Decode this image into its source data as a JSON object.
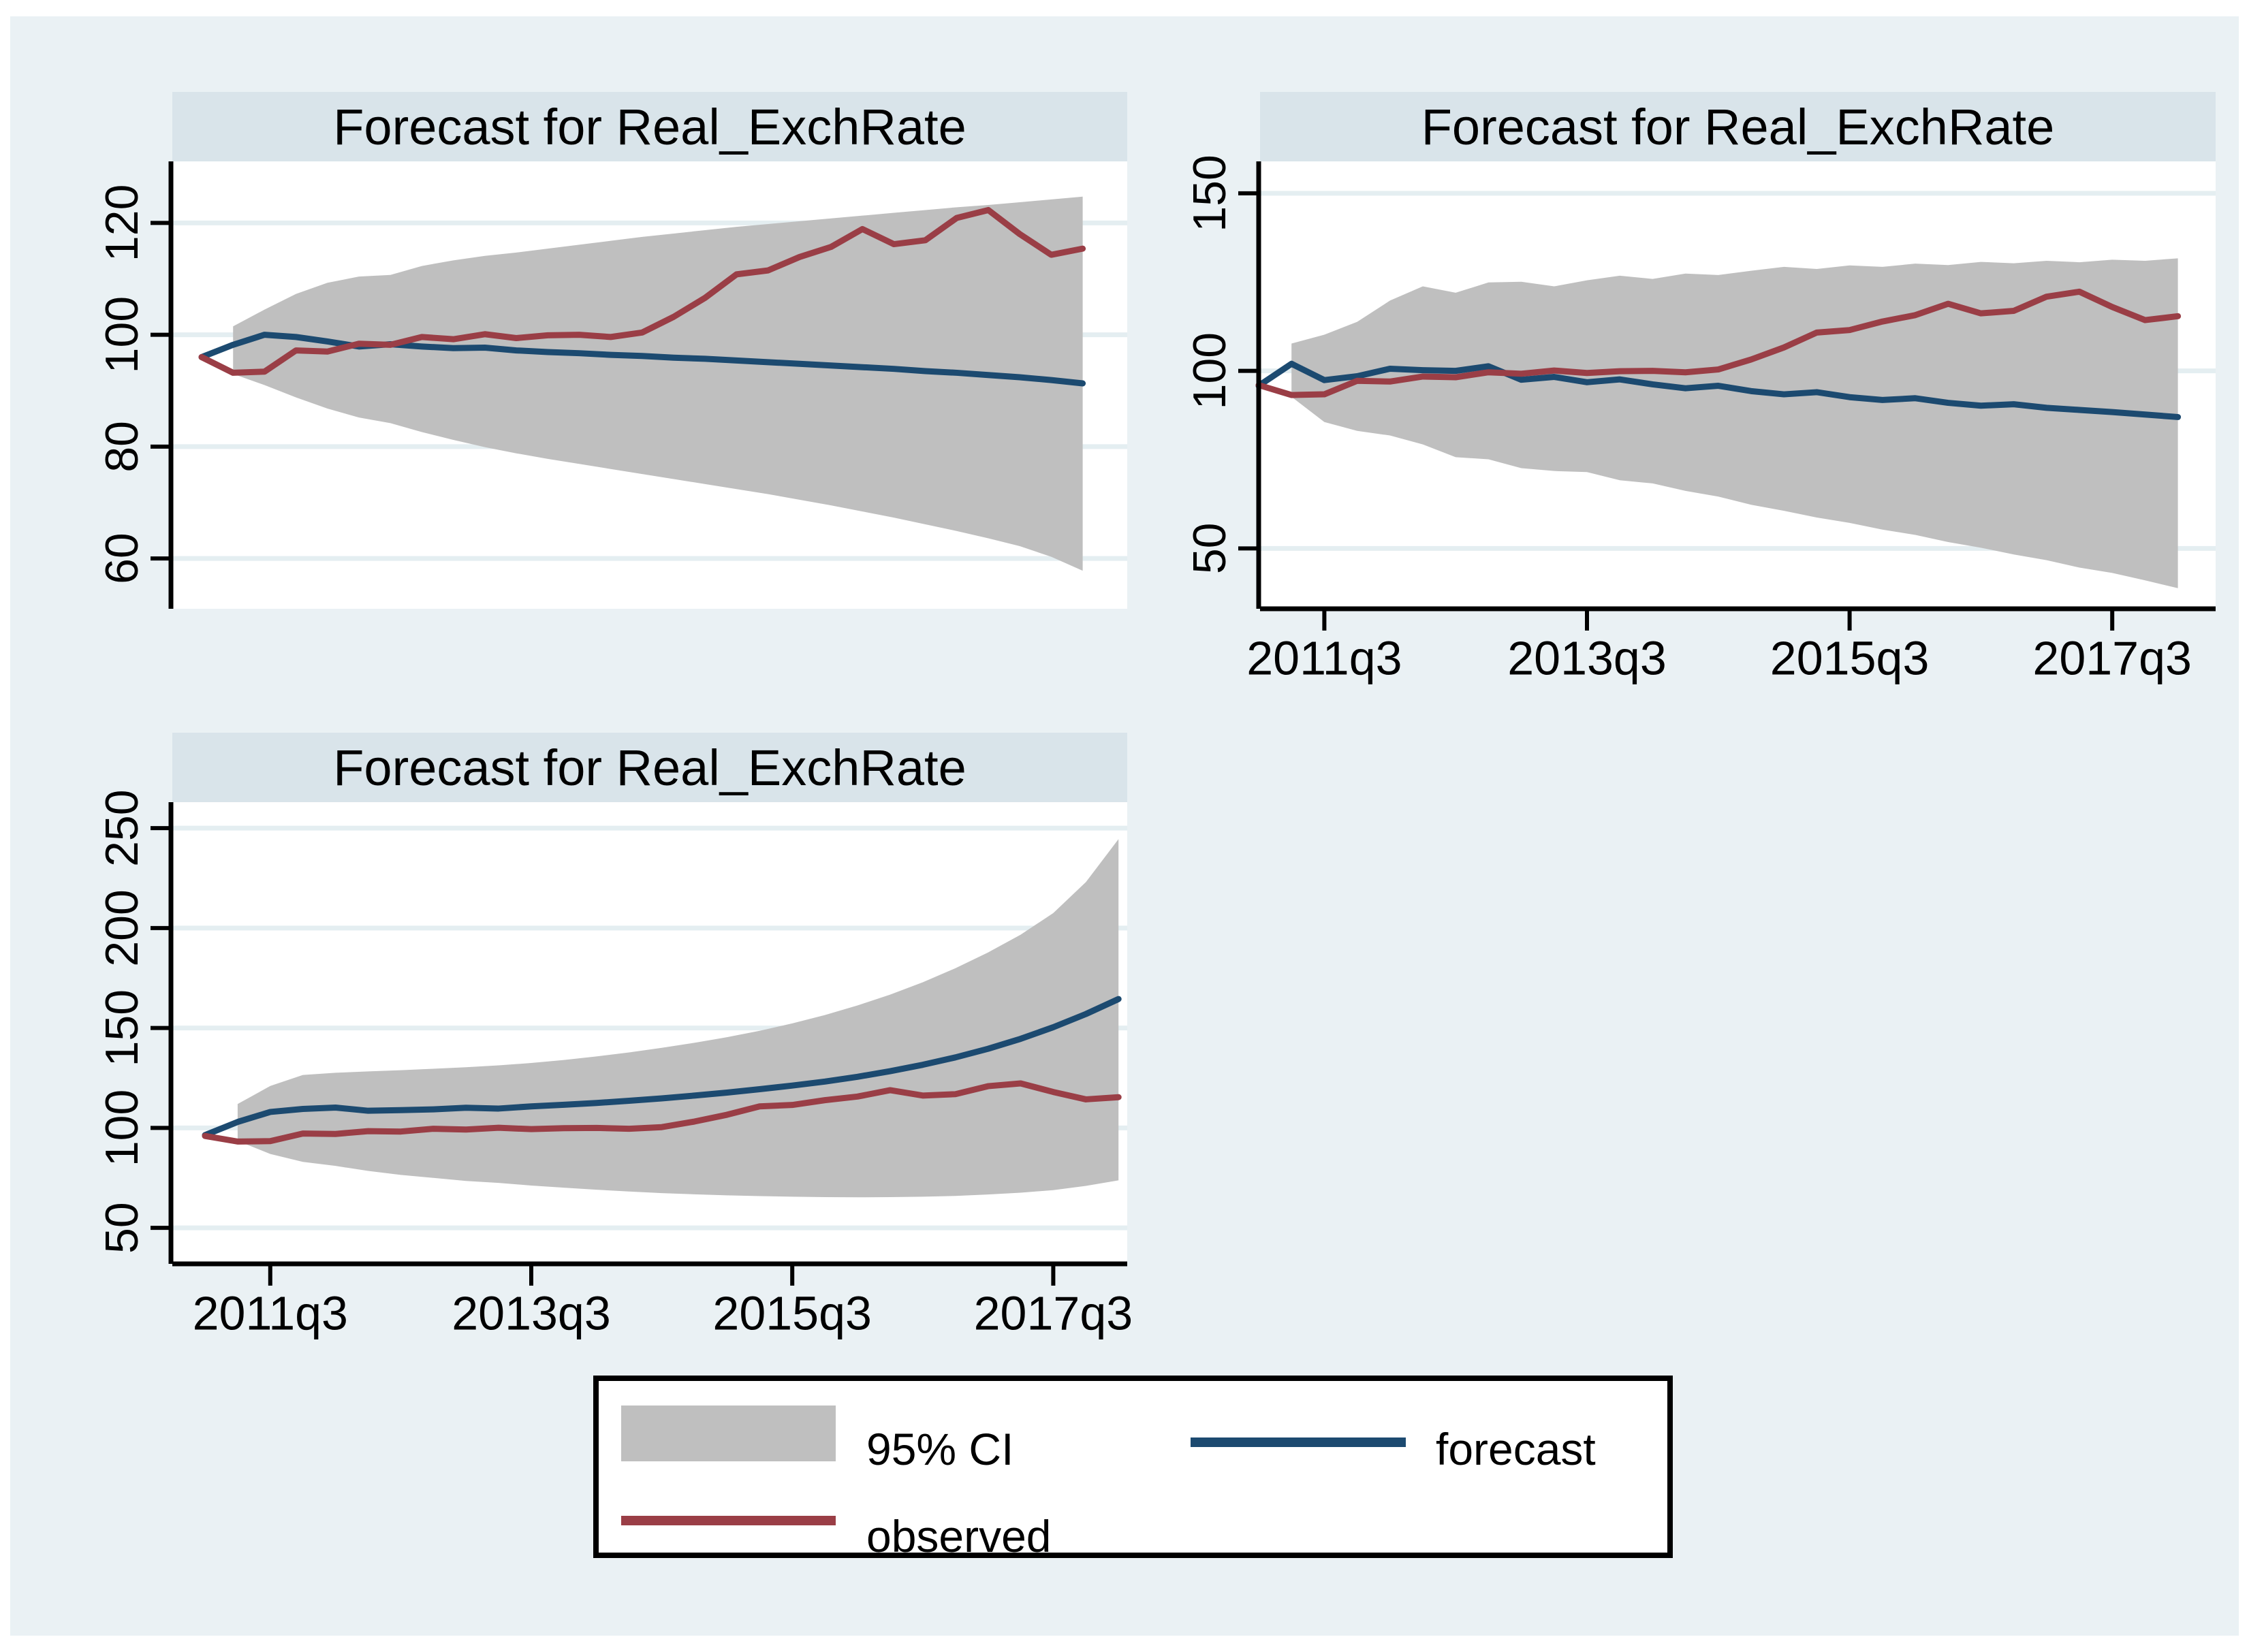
{
  "figure": {
    "background_color": "#ffffff",
    "canvas_color": "#eaf1f4",
    "title_band_color": "#d9e4ea",
    "plot_color": "#ffffff",
    "grid_color": "#e4eef1",
    "axis_color": "#000000",
    "ci_color": "#bfbfbf",
    "forecast_color": "#1c4a70",
    "observed_color": "#9a3e46"
  },
  "legend": {
    "items": [
      {
        "label": "95% CI",
        "swatch": "area",
        "color": "#bfbfbf"
      },
      {
        "label": "forecast",
        "swatch": "line",
        "color": "#1c4a70"
      },
      {
        "label": "observed",
        "swatch": "line",
        "color": "#9a3e46"
      }
    ]
  },
  "chart_data": [
    {
      "type": "area",
      "title": "Forecast for Real_ExchRate",
      "panel": "top-left",
      "x": "quarterly from 2011q1",
      "x_tick_indices": [
        2,
        10,
        18,
        26
      ],
      "x_tick_labels": [],
      "y_ticks": [
        60,
        80,
        100,
        120
      ],
      "y_range": [
        51,
        131
      ],
      "grid": true,
      "legend_position": "none",
      "series": [
        {
          "name": "95% CI upper",
          "values": [
            null,
            101.5,
            104.5,
            107.3,
            109.3,
            110.4,
            110.7,
            112.3,
            113.3,
            114.1,
            114.7,
            115.4,
            116.1,
            116.8,
            117.5,
            118.1,
            118.7,
            119.3,
            119.8,
            120.3,
            120.8,
            121.3,
            121.8,
            122.3,
            122.8,
            123.2,
            123.7,
            124.2,
            124.7
          ]
        },
        {
          "name": "95% CI lower",
          "values": [
            null,
            93,
            91,
            88.8,
            86.8,
            85.2,
            84.2,
            82.6,
            81.2,
            79.9,
            78.8,
            77.8,
            76.9,
            76,
            75.1,
            74.2,
            73.3,
            72.4,
            71.5,
            70.5,
            69.5,
            68.4,
            67.3,
            66.1,
            64.9,
            63.6,
            62.2,
            60.3,
            57.8
          ]
        },
        {
          "name": "forecast",
          "values": [
            96,
            98.2,
            100,
            99.6,
            98.8,
            97.9,
            98.3,
            97.9,
            97.6,
            97.7,
            97.2,
            96.9,
            96.7,
            96.4,
            96.2,
            95.9,
            95.7,
            95.4,
            95.1,
            94.8,
            94.5,
            94.2,
            93.9,
            93.5,
            93.2,
            92.8,
            92.4,
            91.9,
            91.3
          ]
        },
        {
          "name": "observed",
          "values": [
            96,
            93.2,
            93.4,
            97.2,
            97,
            98.4,
            98.2,
            99.6,
            99.2,
            100.1,
            99.4,
            99.9,
            100,
            99.6,
            100.4,
            103.2,
            106.6,
            110.8,
            111.5,
            113.9,
            115.7,
            118.9,
            116.2,
            116.9,
            120.9,
            122.3,
            118,
            114.3,
            115.4
          ]
        }
      ]
    },
    {
      "type": "area",
      "title": "Forecast for Real_ExchRate",
      "panel": "top-right",
      "x": "quarterly from 2011q1",
      "x_tick_indices": [
        2,
        10,
        18,
        26
      ],
      "x_tick_labels": [
        "2011q3",
        "2013q3",
        "2015q3",
        "2017q3"
      ],
      "y_ticks": [
        50,
        100,
        150
      ],
      "y_range": [
        33,
        159
      ],
      "grid": true,
      "legend_position": "none",
      "series": [
        {
          "name": "95% CI upper",
          "values": [
            null,
            107.7,
            110.2,
            113.8,
            119.8,
            123.8,
            122,
            124.9,
            125.1,
            123.8,
            125.5,
            126.8,
            125.9,
            127.4,
            127,
            128.2,
            129.3,
            128.7,
            129.7,
            129.3,
            130.2,
            129.8,
            130.7,
            130.3,
            131,
            130.6,
            131.3,
            131,
            131.7
          ]
        },
        {
          "name": "95% CI lower",
          "values": [
            null,
            92.7,
            85.6,
            83.1,
            81.8,
            79.3,
            75.7,
            75.1,
            72.6,
            71.8,
            71.5,
            69.2,
            68.3,
            66.2,
            64.6,
            62.3,
            60.6,
            58.7,
            57.2,
            55.3,
            53.8,
            51.8,
            50.2,
            48.3,
            46.7,
            44.6,
            43.1,
            41,
            38.8
          ]
        },
        {
          "name": "forecast",
          "values": [
            95.8,
            102,
            97.4,
            98.5,
            100.6,
            100.2,
            100,
            101.3,
            97.5,
            98.3,
            96.8,
            97.6,
            96.2,
            95.1,
            95.8,
            94.3,
            93.4,
            94,
            92.6,
            91.8,
            92.3,
            91,
            90.2,
            90.6,
            89.6,
            89,
            88.4,
            87.7,
            87
          ]
        },
        {
          "name": "observed",
          "values": [
            96,
            93.2,
            93.4,
            97.2,
            97,
            98.4,
            98.2,
            99.6,
            99.2,
            100.1,
            99.4,
            99.9,
            100,
            99.6,
            100.4,
            103.2,
            106.6,
            110.8,
            111.5,
            113.9,
            115.7,
            118.9,
            116.2,
            116.9,
            120.9,
            122.3,
            118,
            114.3,
            115.4
          ]
        }
      ]
    },
    {
      "type": "area",
      "title": "Forecast for Real_ExchRate",
      "panel": "bottom-left",
      "x": "quarterly from 2011q1",
      "x_tick_indices": [
        2,
        10,
        18,
        26
      ],
      "x_tick_labels": [
        "2011q3",
        "2013q3",
        "2015q3",
        "2017q3"
      ],
      "y_ticks": [
        50,
        100,
        150,
        200,
        250
      ],
      "y_range": [
        32,
        263
      ],
      "grid": true,
      "legend_position": "none",
      "series": [
        {
          "name": "95% CI upper",
          "values": [
            null,
            112,
            121,
            126.5,
            127.6,
            128.3,
            128.9,
            129.6,
            130.4,
            131.3,
            132.5,
            134,
            135.8,
            137.8,
            140.1,
            142.6,
            145.4,
            148.6,
            152.3,
            156.5,
            161.3,
            166.7,
            172.9,
            179.9,
            187.8,
            196.7,
            207.5,
            223,
            244.5
          ]
        },
        {
          "name": "95% CI lower",
          "values": [
            null,
            93.5,
            87,
            83,
            81,
            78.5,
            76.5,
            75,
            73.5,
            72.5,
            71.2,
            70.1,
            69.1,
            68.2,
            67.4,
            66.8,
            66.3,
            65.9,
            65.6,
            65.4,
            65.3,
            65.4,
            65.6,
            66,
            66.7,
            67.6,
            68.9,
            71,
            73.8
          ]
        },
        {
          "name": "forecast",
          "values": [
            96.4,
            103,
            108,
            109.5,
            110.2,
            108.6,
            108.9,
            109.3,
            110.1,
            109.7,
            110.8,
            111.6,
            112.5,
            113.6,
            114.8,
            116.2,
            117.7,
            119.4,
            121.2,
            123.2,
            125.6,
            128.4,
            131.6,
            135.3,
            139.6,
            144.6,
            150.4,
            157,
            164.5
          ]
        },
        {
          "name": "observed",
          "values": [
            96,
            93.2,
            93.4,
            97.2,
            97,
            98.4,
            98.2,
            99.6,
            99.2,
            100.1,
            99.4,
            99.9,
            100,
            99.6,
            100.4,
            103.2,
            106.6,
            110.8,
            111.5,
            113.9,
            115.7,
            118.9,
            116.2,
            116.9,
            120.9,
            122.3,
            118,
            114.3,
            115.4
          ]
        }
      ]
    }
  ]
}
